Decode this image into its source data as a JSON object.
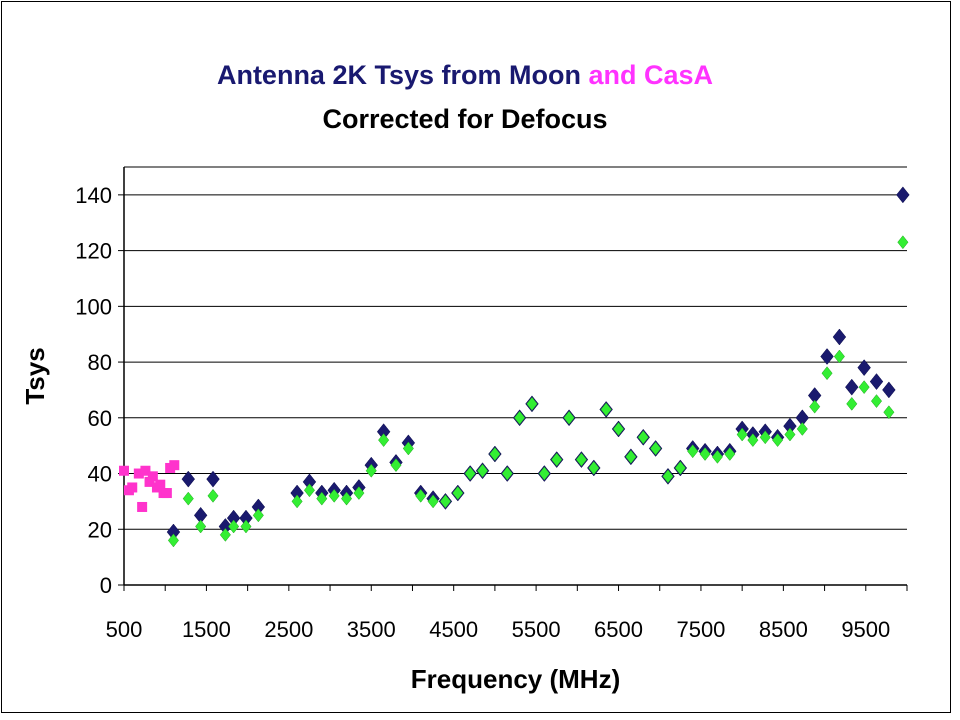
{
  "chart_data": {
    "type": "scatter",
    "title_parts": [
      {
        "text": "Antenna 2K Tsys from Moon ",
        "color": "#191970"
      },
      {
        "text": "and CasA",
        "color": "#ff33ff"
      }
    ],
    "subtitle": "Corrected for Defocus",
    "xlabel": "Frequency (MHz)",
    "ylabel": "Tsys",
    "xlim": [
      500,
      10000
    ],
    "ylim": [
      0,
      150
    ],
    "x_ticks": [
      500,
      1500,
      2500,
      3500,
      4500,
      5500,
      6500,
      7500,
      8500,
      9500
    ],
    "y_ticks": [
      0,
      20,
      40,
      60,
      80,
      100,
      120,
      140
    ],
    "grid": "horizontal",
    "series": [
      {
        "color": "#1a1a6e",
        "marker": "diamond",
        "points": [
          [
            1100,
            19
          ],
          [
            1280,
            38
          ],
          [
            1430,
            25
          ],
          [
            1580,
            38
          ],
          [
            1730,
            21
          ],
          [
            1830,
            24
          ],
          [
            1980,
            24
          ],
          [
            2130,
            28
          ],
          [
            2600,
            33
          ],
          [
            2750,
            37
          ],
          [
            2900,
            33
          ],
          [
            3050,
            34
          ],
          [
            3200,
            33
          ],
          [
            3350,
            35
          ],
          [
            3500,
            43
          ],
          [
            3650,
            55
          ],
          [
            3800,
            44
          ],
          [
            3950,
            51
          ],
          [
            4100,
            33
          ],
          [
            4250,
            31
          ],
          [
            4400,
            30
          ],
          [
            4550,
            33
          ],
          [
            4700,
            40
          ],
          [
            4850,
            41
          ],
          [
            5000,
            47
          ],
          [
            5150,
            40
          ],
          [
            5300,
            60
          ],
          [
            5450,
            65
          ],
          [
            5600,
            40
          ],
          [
            5750,
            45
          ],
          [
            5900,
            60
          ],
          [
            6050,
            45
          ],
          [
            6200,
            42
          ],
          [
            6350,
            63
          ],
          [
            6500,
            56
          ],
          [
            6650,
            46
          ],
          [
            6800,
            53
          ],
          [
            6950,
            49
          ],
          [
            7100,
            39
          ],
          [
            7250,
            42
          ],
          [
            7400,
            49
          ],
          [
            7550,
            48
          ],
          [
            7700,
            47
          ],
          [
            7850,
            48
          ],
          [
            8000,
            56
          ],
          [
            8130,
            54
          ],
          [
            8280,
            55
          ],
          [
            8430,
            53
          ],
          [
            8580,
            57
          ],
          [
            8730,
            60
          ],
          [
            8880,
            68
          ],
          [
            9030,
            82
          ],
          [
            9180,
            89
          ],
          [
            9330,
            71
          ],
          [
            9480,
            78
          ],
          [
            9630,
            73
          ],
          [
            9780,
            70
          ],
          [
            9950,
            140
          ]
        ]
      },
      {
        "color": "#33ee33",
        "marker": "diamond",
        "points": [
          [
            1100,
            16
          ],
          [
            1280,
            31
          ],
          [
            1430,
            21
          ],
          [
            1580,
            32
          ],
          [
            1730,
            18
          ],
          [
            1830,
            21
          ],
          [
            1980,
            21
          ],
          [
            2130,
            25
          ],
          [
            2600,
            30
          ],
          [
            2750,
            34
          ],
          [
            2900,
            31
          ],
          [
            3050,
            32
          ],
          [
            3200,
            31
          ],
          [
            3350,
            33
          ],
          [
            3500,
            41
          ],
          [
            3650,
            52
          ],
          [
            3800,
            43
          ],
          [
            3950,
            49
          ],
          [
            4100,
            32
          ],
          [
            4250,
            30
          ],
          [
            4400,
            30
          ],
          [
            4550,
            33
          ],
          [
            4700,
            40
          ],
          [
            4850,
            41
          ],
          [
            5000,
            47
          ],
          [
            5150,
            40
          ],
          [
            5300,
            60
          ],
          [
            5450,
            65
          ],
          [
            5600,
            40
          ],
          [
            5750,
            45
          ],
          [
            5900,
            60
          ],
          [
            6050,
            45
          ],
          [
            6200,
            42
          ],
          [
            6350,
            63
          ],
          [
            6500,
            56
          ],
          [
            6650,
            46
          ],
          [
            6800,
            53
          ],
          [
            6950,
            49
          ],
          [
            7100,
            39
          ],
          [
            7250,
            42
          ],
          [
            7400,
            48
          ],
          [
            7550,
            47
          ],
          [
            7700,
            46
          ],
          [
            7850,
            47
          ],
          [
            8000,
            54
          ],
          [
            8130,
            52
          ],
          [
            8280,
            53
          ],
          [
            8430,
            52
          ],
          [
            8580,
            54
          ],
          [
            8730,
            56
          ],
          [
            8880,
            64
          ],
          [
            9030,
            76
          ],
          [
            9180,
            82
          ],
          [
            9330,
            65
          ],
          [
            9480,
            71
          ],
          [
            9630,
            66
          ],
          [
            9780,
            62
          ],
          [
            9950,
            123
          ]
        ]
      },
      {
        "color": "#ff33cc",
        "marker": "square",
        "points": [
          [
            500,
            41
          ],
          [
            560,
            34
          ],
          [
            600,
            35
          ],
          [
            680,
            40
          ],
          [
            720,
            28
          ],
          [
            760,
            41
          ],
          [
            810,
            37
          ],
          [
            850,
            39
          ],
          [
            900,
            35
          ],
          [
            940,
            36
          ],
          [
            980,
            33
          ],
          [
            1020,
            33
          ],
          [
            1060,
            42
          ],
          [
            1110,
            43
          ]
        ]
      }
    ]
  }
}
